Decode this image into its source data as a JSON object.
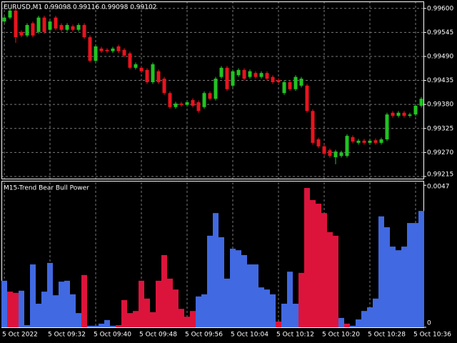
{
  "chart_data": [
    {
      "type": "candlestick",
      "title": "EURUSD,M1  0.99098 0.99116 0.99098 0.99102",
      "bull_color": "#22c322",
      "bear_color": "#e8141e",
      "grid": true,
      "ylim": [
        0.9921,
        0.99616
      ],
      "yticks": [
        {
          "value": 0.996,
          "label": "0.99600"
        },
        {
          "value": 0.99545,
          "label": "0.99545"
        },
        {
          "value": 0.9949,
          "label": "0.99490"
        },
        {
          "value": 0.99435,
          "label": "0.99435"
        },
        {
          "value": 0.9938,
          "label": "0.99380"
        },
        {
          "value": 0.99325,
          "label": "0.99325"
        },
        {
          "value": 0.9927,
          "label": "0.99270"
        },
        {
          "value": 0.99215,
          "label": "0.99215"
        }
      ],
      "open": [
        0.9957,
        0.99579,
        0.99595,
        0.99546,
        0.99538,
        0.99566,
        0.99546,
        0.99579,
        0.99551,
        0.99579,
        0.99562,
        0.99551,
        0.99559,
        0.99551,
        0.99562,
        0.99534,
        0.9948,
        0.99508,
        0.99505,
        0.99502,
        0.99513,
        0.99505,
        0.99497,
        0.99464,
        0.99464,
        0.99459,
        0.99431,
        0.99456,
        0.99439,
        0.99406,
        0.99374,
        0.99382,
        0.99379,
        0.9939,
        0.99385,
        0.99374,
        0.99406,
        0.99393,
        0.99443,
        0.99464,
        0.99423,
        0.99447,
        0.99459,
        0.99443,
        0.99452,
        0.99443,
        0.99452,
        0.99443,
        0.99436,
        0.99406,
        0.99431,
        0.99415,
        0.99423,
        0.99423,
        0.99365,
        0.993,
        0.99284,
        0.99275,
        0.99259,
        0.99262,
        0.99262,
        0.99305,
        0.99292,
        0.99297,
        0.99292,
        0.99298,
        0.99292,
        0.993,
        0.99361,
        0.99354,
        0.99361,
        0.99354,
        0.99357,
        0.99377
      ],
      "high": [
        0.99584,
        0.996,
        0.99599,
        0.9955,
        0.99566,
        0.9957,
        0.99583,
        0.99583,
        0.99574,
        0.99583,
        0.99566,
        0.99566,
        0.99563,
        0.99566,
        0.99566,
        0.99538,
        0.99517,
        0.99512,
        0.99509,
        0.99512,
        0.99517,
        0.99509,
        0.99501,
        0.99476,
        0.99468,
        0.99463,
        0.99476,
        0.9946,
        0.99443,
        0.9941,
        0.99386,
        0.99386,
        0.99389,
        0.99394,
        0.99389,
        0.9941,
        0.9941,
        0.99443,
        0.99468,
        0.99468,
        0.9946,
        0.99463,
        0.99463,
        0.9946,
        0.99456,
        0.99456,
        0.99456,
        0.99447,
        0.9944,
        0.99435,
        0.99435,
        0.99447,
        0.99443,
        0.99427,
        0.99369,
        0.99304,
        0.99288,
        0.99279,
        0.99276,
        0.99274,
        0.99312,
        0.99309,
        0.99301,
        0.99301,
        0.99301,
        0.99302,
        0.99304,
        0.99361,
        0.99365,
        0.99365,
        0.99365,
        0.99361,
        0.99381,
        0.99397
      ],
      "low": [
        0.99565,
        0.99575,
        0.99521,
        0.99534,
        0.99534,
        0.99534,
        0.99542,
        0.99542,
        0.99547,
        0.9955,
        0.99547,
        0.99547,
        0.99547,
        0.99547,
        0.9953,
        0.99476,
        0.99476,
        0.99498,
        0.99498,
        0.99498,
        0.99498,
        0.99488,
        0.9946,
        0.9946,
        0.99452,
        0.99427,
        0.99427,
        0.99427,
        0.99402,
        0.9937,
        0.9937,
        0.99375,
        0.99375,
        0.99373,
        0.99361,
        0.9937,
        0.99389,
        0.99389,
        0.99439,
        0.99411,
        0.99419,
        0.99443,
        0.99435,
        0.99439,
        0.99439,
        0.99439,
        0.99435,
        0.99427,
        0.99427,
        0.99402,
        0.99411,
        0.99411,
        0.99419,
        0.99361,
        0.99288,
        0.9928,
        0.99263,
        0.99258,
        0.99243,
        0.99258,
        0.99258,
        0.99291,
        0.99288,
        0.99288,
        0.99288,
        0.99288,
        0.99288,
        0.99296,
        0.9935,
        0.9935,
        0.9935,
        0.9935,
        0.99353,
        0.99373
      ],
      "close": [
        0.99579,
        0.99595,
        0.99534,
        0.99538,
        0.99562,
        0.99538,
        0.99579,
        0.99546,
        0.9957,
        0.99554,
        0.99551,
        0.99562,
        0.99551,
        0.99562,
        0.99534,
        0.9948,
        0.99513,
        0.99502,
        0.99502,
        0.99508,
        0.99502,
        0.99492,
        0.99464,
        0.99472,
        0.99456,
        0.99431,
        0.99472,
        0.99431,
        0.99406,
        0.99374,
        0.99382,
        0.99379,
        0.99385,
        0.99377,
        0.99365,
        0.99406,
        0.99393,
        0.99439,
        0.99464,
        0.99415,
        0.99456,
        0.99459,
        0.99439,
        0.99456,
        0.99443,
        0.99452,
        0.99439,
        0.99431,
        0.99431,
        0.99431,
        0.99415,
        0.99443,
        0.99439,
        0.99365,
        0.99292,
        0.99284,
        0.99267,
        0.99262,
        0.99272,
        0.9927,
        0.99308,
        0.99295,
        0.99297,
        0.99292,
        0.99297,
        0.99292,
        0.993,
        0.99357,
        0.99354,
        0.99361,
        0.99354,
        0.99357,
        0.99377,
        0.99393
      ]
    },
    {
      "type": "bar",
      "title": "M15-Trend Bear Bull Power",
      "grid": true,
      "categories": [
        "5 Oct 2022",
        null,
        null,
        null,
        null,
        null,
        null,
        null,
        "5 Oct 09:32",
        null,
        null,
        null,
        null,
        null,
        null,
        null,
        "5 Oct 09:40",
        null,
        null,
        null,
        null,
        null,
        null,
        null,
        "5 Oct 09:48",
        null,
        null,
        null,
        null,
        null,
        null,
        null,
        "5 Oct 09:56",
        null,
        null,
        null,
        null,
        null,
        null,
        null,
        "5 Oct 10:04",
        null,
        null,
        null,
        null,
        null,
        null,
        null,
        "5 Oct 10:12",
        null,
        null,
        null,
        null,
        null,
        null,
        null,
        "5 Oct 10:20",
        null,
        null,
        null,
        null,
        null,
        null,
        null,
        "5 Oct 10:28",
        null,
        null,
        null,
        null,
        null,
        null,
        null,
        "5 Oct 10:36",
        null
      ],
      "ylim": [
        0,
        0.0048
      ],
      "yticks": [
        0,
        0.0047
      ],
      "series": [
        {
          "color": "#4169e1",
          "values": [
            0.00154,
            null,
            null,
            0.00121,
            7e-05,
            0.00208,
            0.00078,
            0.00118,
            0.00213,
            0.00106,
            0.00151,
            0.00154,
            0.00109,
            0.00047,
            null,
            5e-05,
            5e-05,
            0.00012,
            0.00024,
            5e-05,
            null,
            null,
            null,
            null,
            null,
            null,
            null,
            null,
            null,
            null,
            null,
            null,
            null,
            null,
            0.00102,
            0.00109,
            0.00303,
            0.00378,
            0.00298,
            0.00161,
            0.0026,
            0.00255,
            0.00239,
            0.00208,
            0.00208,
            0.00132,
            0.00125,
            0.00109,
            null,
            0.00078,
            0.00184,
            0.00078,
            null,
            null,
            null,
            null,
            null,
            null,
            null,
            0.00031,
            null,
            5e-05,
            0.00026,
            0.00054,
            0.00066,
            0.00095,
            0.00367,
            0.00331,
            0.00267,
            0.00255,
            0.00267,
            0.00345,
            0.00345,
            0.00385
          ]
        },
        {
          "color": "#dc143c",
          "values": [
            null,
            0.00118,
            0.00114,
            null,
            null,
            null,
            null,
            null,
            null,
            null,
            null,
            null,
            null,
            null,
            0.00173,
            null,
            null,
            null,
            null,
            null,
            7e-05,
            0.0009,
            0.00047,
            0.00054,
            0.00154,
            0.00095,
            0.0005,
            0.00154,
            0.00239,
            0.00161,
            0.00125,
            0.00061,
            0.00035,
            0.00054,
            null,
            null,
            null,
            null,
            null,
            null,
            null,
            null,
            null,
            null,
            null,
            null,
            null,
            null,
            0.00019,
            null,
            null,
            null,
            0.0018,
            0.00461,
            0.00421,
            0.00409,
            0.00378,
            0.00315,
            0.00303,
            null,
            0.00012,
            null,
            null,
            null,
            null,
            null,
            null,
            null,
            null,
            null,
            null,
            null,
            null,
            null
          ]
        }
      ]
    }
  ]
}
